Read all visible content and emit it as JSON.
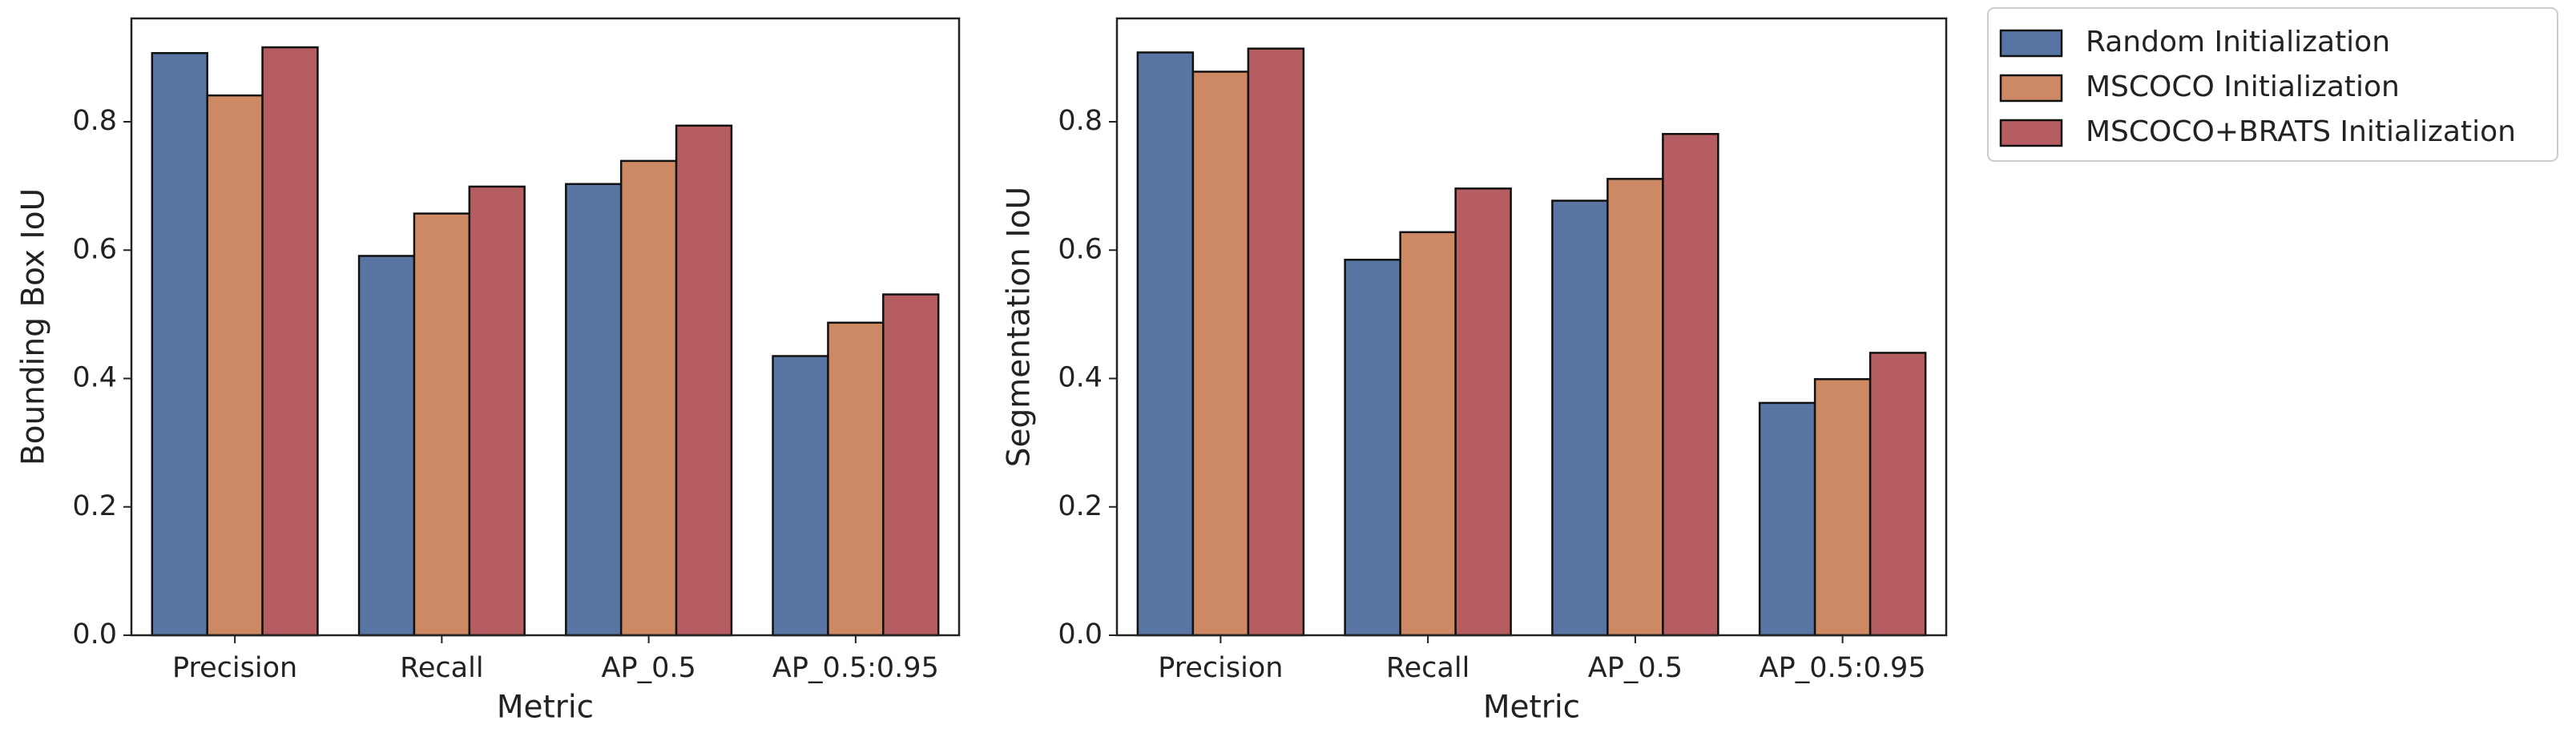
{
  "chart_data": [
    {
      "type": "bar",
      "xlabel": "Metric",
      "ylabel": "Bounding Box IoU",
      "categories": [
        "Precision",
        "Recall",
        "AP_0.5",
        "AP_0.5:0.95"
      ],
      "series": [
        {
          "name": "Random Initialization",
          "color": "#5875a4",
          "values": [
            0.907,
            0.591,
            0.703,
            0.435
          ]
        },
        {
          "name": "MSCOCO Initialization",
          "color": "#cc8963",
          "values": [
            0.841,
            0.657,
            0.739,
            0.487
          ]
        },
        {
          "name": "MSCOCO+BRATS Initialization",
          "color": "#b55d60",
          "values": [
            0.916,
            0.699,
            0.794,
            0.531
          ]
        }
      ],
      "ylim": [
        0,
        0.961
      ],
      "yticks": [
        0.0,
        0.2,
        0.4,
        0.6,
        0.8
      ],
      "legend": "outside upper right"
    },
    {
      "type": "bar",
      "xlabel": "Metric",
      "ylabel": "Segmentation IoU",
      "categories": [
        "Precision",
        "Recall",
        "AP_0.5",
        "AP_0.5:0.95"
      ],
      "series": [
        {
          "color": "#5875a4",
          "values": [
            0.908,
            0.585,
            0.677,
            0.362
          ]
        },
        {
          "color": "#cc8963",
          "values": [
            0.878,
            0.628,
            0.711,
            0.399
          ]
        },
        {
          "color": "#b55d60",
          "values": [
            0.914,
            0.696,
            0.781,
            0.44
          ]
        }
      ],
      "ylim": [
        0,
        0.961
      ],
      "yticks": [
        0.0,
        0.2,
        0.4,
        0.6,
        0.8
      ]
    }
  ]
}
